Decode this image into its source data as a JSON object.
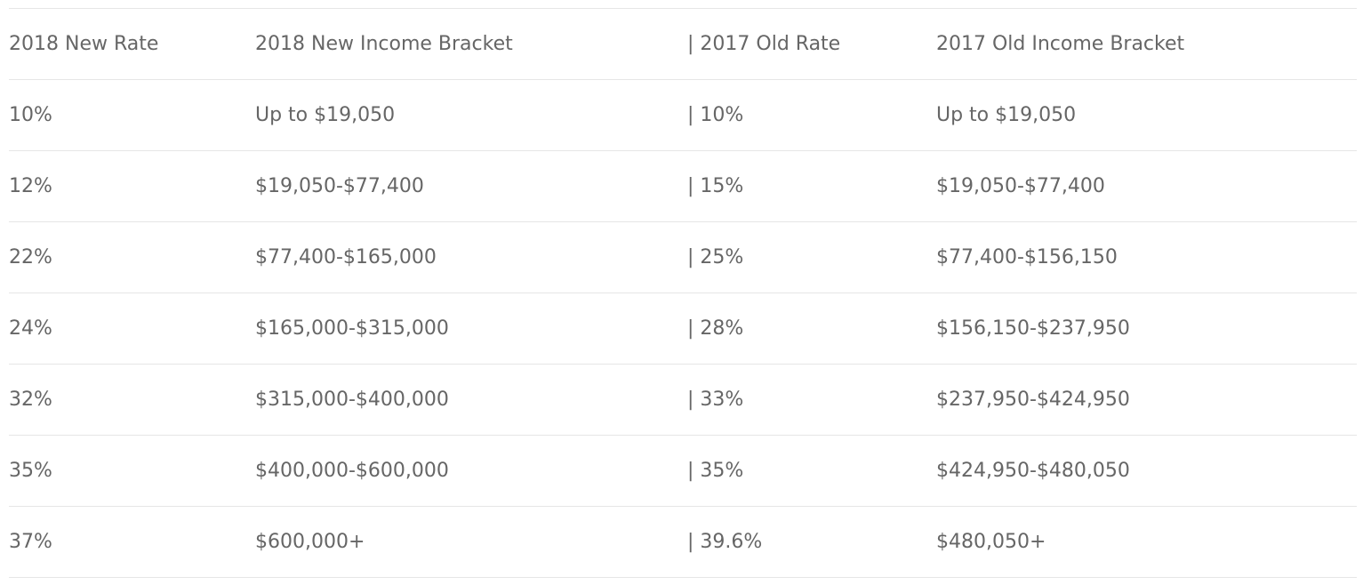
{
  "table": {
    "header": [
      "2018 New Rate",
      "2018 New Income Bracket",
      "| 2017 Old Rate",
      "2017 Old Income Bracket"
    ],
    "rows": [
      [
        "10%",
        "Up to $19,050",
        "| 10%",
        "Up to $19,050"
      ],
      [
        "12%",
        "$19,050-$77,400",
        "| 15%",
        "$19,050-$77,400"
      ],
      [
        "22%",
        "$77,400-$165,000",
        "| 25%",
        "$77,400-$156,150"
      ],
      [
        "24%",
        "$165,000-$315,000",
        "| 28%",
        "$156,150-$237,950"
      ],
      [
        "32%",
        "$315,000-$400,000",
        "| 33%",
        "$237,950-$424,950"
      ],
      [
        "35%",
        "$400,000-$600,000",
        "| 35%",
        "$424,950-$480,050"
      ],
      [
        "37%",
        "$600,000+",
        "| 39.6%",
        "$480,050+"
      ]
    ]
  }
}
